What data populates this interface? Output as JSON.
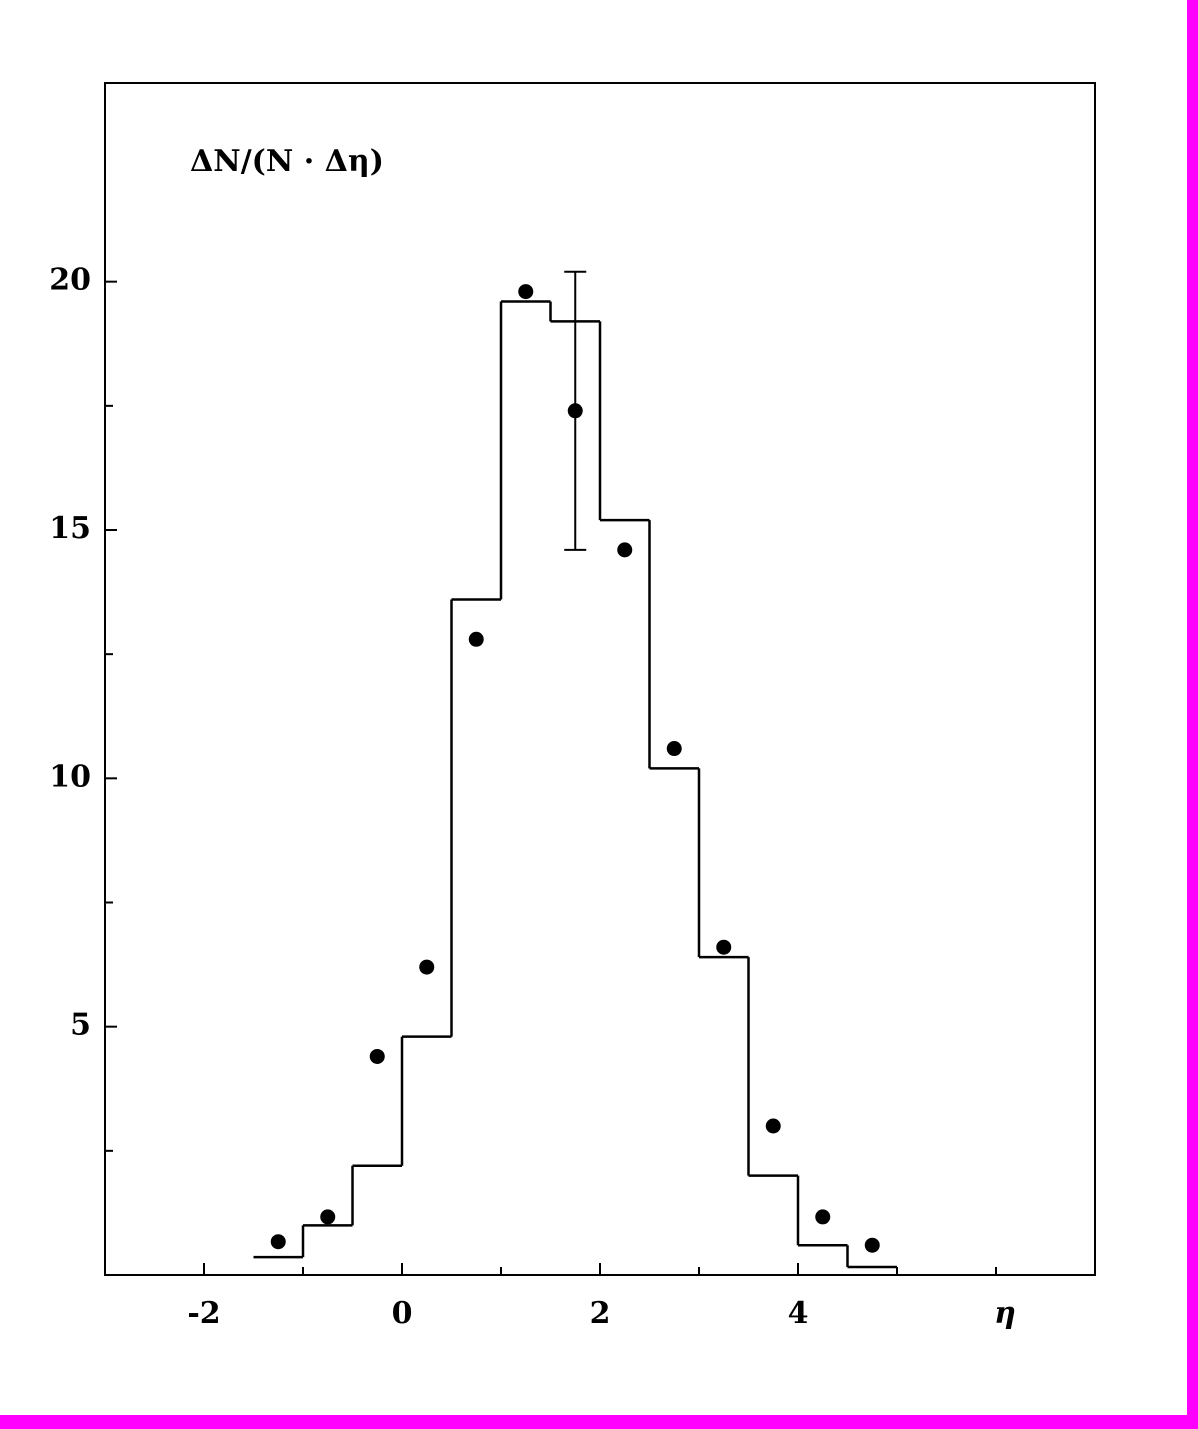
{
  "chart_data": {
    "type": "histogram",
    "ylabel": "ΔN/(N · Δη)",
    "xlabel": "η",
    "bins": [
      -1.5,
      -1,
      -0.5,
      0,
      0.5,
      1,
      1.5,
      2,
      2.5,
      3,
      3.5,
      4,
      4.5,
      5
    ],
    "values": [
      0.36,
      1.0,
      2.2,
      4.8,
      13.6,
      19.6,
      19.2,
      15.2,
      10.2,
      6.4,
      2.0,
      0.6,
      0.16
    ],
    "points": {
      "x": [
        -1.25,
        -0.75,
        -0.25,
        0.25,
        0.75,
        1.25,
        1.75,
        2.25,
        2.75,
        3.25,
        3.75,
        4.25,
        4.75
      ],
      "values": [
        0.67,
        1.17,
        4.4,
        6.2,
        12.8,
        19.8,
        17.4,
        14.6,
        10.6,
        6.6,
        3.0,
        1.17,
        0.6
      ],
      "errors": [
        null,
        null,
        null,
        null,
        null,
        null,
        2.8,
        null,
        null,
        null,
        null,
        null,
        null
      ]
    },
    "color": "#000000",
    "xlim": [
      -3,
      7
    ],
    "ylim": [
      0,
      24
    ],
    "xticks": [
      -2,
      0,
      2,
      4
    ],
    "xminorticks": [
      -1,
      1,
      3,
      5,
      6
    ],
    "yticks": [
      5,
      10,
      15,
      20
    ],
    "yminorticks": [
      2.5,
      7.5,
      12.5,
      17.5
    ]
  }
}
